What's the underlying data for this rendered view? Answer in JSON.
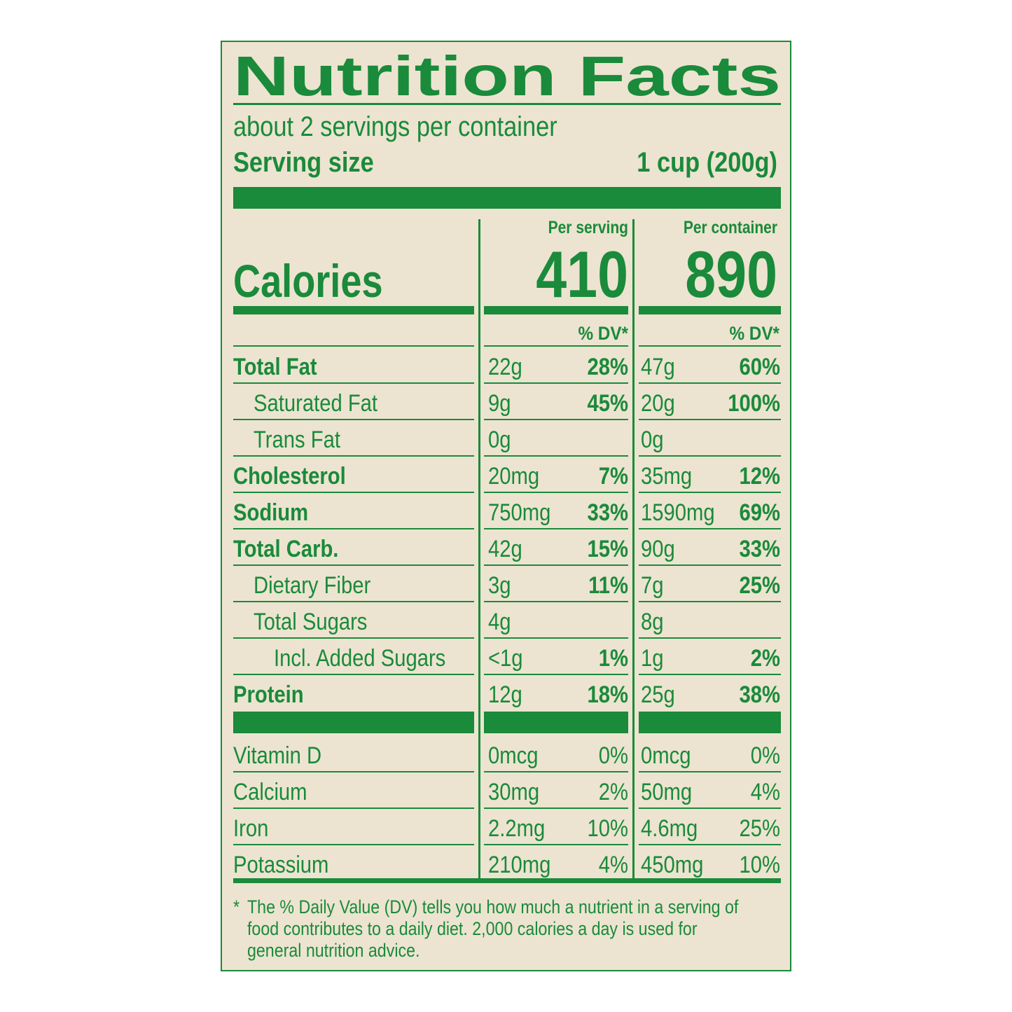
{
  "title": "Nutrition Facts",
  "servings": "about 2 servings per container",
  "serving_size_label": "Serving size",
  "serving_size_value": "1 cup (200g)",
  "calories_label": "Calories",
  "columns": [
    {
      "header": "Per serving",
      "calories": "410",
      "dv_header": "% DV*"
    },
    {
      "header": "Per container",
      "calories": "890",
      "dv_header": "% DV*"
    }
  ],
  "nutrients": [
    {
      "name": "Total Fat",
      "bold": true,
      "indent": 0,
      "values": [
        [
          "22g",
          "28%"
        ],
        [
          "47g",
          "60%"
        ]
      ]
    },
    {
      "name": "Saturated Fat",
      "bold": false,
      "indent": 1,
      "values": [
        [
          "9g",
          "45%"
        ],
        [
          "20g",
          "100%"
        ]
      ]
    },
    {
      "name": "Trans Fat",
      "bold": false,
      "indent": 1,
      "values": [
        [
          "0g",
          null
        ],
        [
          "0g",
          null
        ]
      ]
    },
    {
      "name": "Cholesterol",
      "bold": true,
      "indent": 0,
      "values": [
        [
          "20mg",
          "7%"
        ],
        [
          "35mg",
          "12%"
        ]
      ]
    },
    {
      "name": "Sodium",
      "bold": true,
      "indent": 0,
      "values": [
        [
          "750mg",
          "33%"
        ],
        [
          "1590mg",
          "69%"
        ]
      ]
    },
    {
      "name": "Total Carb.",
      "bold": true,
      "indent": 0,
      "values": [
        [
          "42g",
          "15%"
        ],
        [
          "90g",
          "33%"
        ]
      ]
    },
    {
      "name": "Dietary Fiber",
      "bold": false,
      "indent": 1,
      "values": [
        [
          "3g",
          "11%"
        ],
        [
          "7g",
          "25%"
        ]
      ]
    },
    {
      "name": "Total Sugars",
      "bold": false,
      "indent": 1,
      "values": [
        [
          "4g",
          null
        ],
        [
          "8g",
          null
        ]
      ]
    },
    {
      "name": "Incl. Added Sugars",
      "bold": false,
      "indent": 2,
      "values": [
        [
          "<1g",
          "1%"
        ],
        [
          "1g",
          "2%"
        ]
      ]
    },
    {
      "name": "Protein",
      "bold": true,
      "indent": 0,
      "values": [
        [
          "12g",
          "18%"
        ],
        [
          "25g",
          "38%"
        ]
      ]
    }
  ],
  "vitamins": [
    {
      "name": "Vitamin D",
      "values": [
        [
          "0mcg",
          "0%"
        ],
        [
          "0mcg",
          "0%"
        ]
      ]
    },
    {
      "name": "Calcium",
      "values": [
        [
          "30mg",
          "2%"
        ],
        [
          "50mg",
          "4%"
        ]
      ]
    },
    {
      "name": "Iron",
      "values": [
        [
          "2.2mg",
          "10%"
        ],
        [
          "4.6mg",
          "25%"
        ]
      ]
    },
    {
      "name": "Potassium",
      "values": [
        [
          "210mg",
          "4%"
        ],
        [
          "450mg",
          "10%"
        ]
      ]
    }
  ],
  "footnote_marker": "*",
  "footnote_lines": [
    "The % Daily Value (DV) tells you how much a nutrient in a serving of",
    "food contributes to a daily diet. 2,000 calories a day is used for",
    "general nutrition advice."
  ]
}
